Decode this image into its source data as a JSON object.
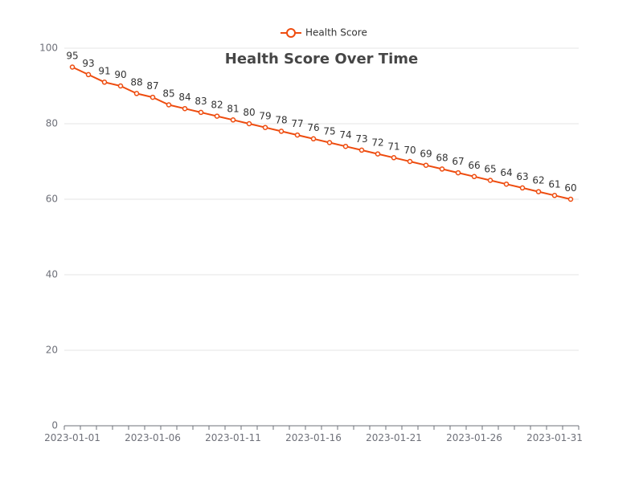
{
  "chart_data": {
    "type": "line",
    "title": "Health Score Over Time",
    "xlabel": "",
    "ylabel": "",
    "ylim": [
      0,
      100
    ],
    "yticks": [
      0,
      20,
      40,
      60,
      80,
      100
    ],
    "x": [
      "2023-01-01",
      "2023-01-02",
      "2023-01-03",
      "2023-01-04",
      "2023-01-05",
      "2023-01-06",
      "2023-01-07",
      "2023-01-08",
      "2023-01-09",
      "2023-01-10",
      "2023-01-11",
      "2023-01-12",
      "2023-01-13",
      "2023-01-14",
      "2023-01-15",
      "2023-01-16",
      "2023-01-17",
      "2023-01-18",
      "2023-01-19",
      "2023-01-20",
      "2023-01-21",
      "2023-01-22",
      "2023-01-23",
      "2023-01-24",
      "2023-01-25",
      "2023-01-26",
      "2023-01-27",
      "2023-01-28",
      "2023-01-29",
      "2023-01-30",
      "2023-01-31",
      "2023-02-01"
    ],
    "xtick_labels": [
      "2023-01-01",
      "2023-01-06",
      "2023-01-11",
      "2023-01-16",
      "2023-01-21",
      "2023-01-26",
      "2023-01-31"
    ],
    "series": [
      {
        "name": "Health Score",
        "color": "#ee4c0f",
        "values": [
          95,
          93,
          91,
          90,
          88,
          87,
          85,
          84,
          83,
          82,
          81,
          80,
          79,
          78,
          77,
          76,
          75,
          74,
          73,
          72,
          71,
          70,
          69,
          68,
          67,
          66,
          65,
          64,
          63,
          62,
          61,
          60
        ]
      }
    ],
    "legend_position": "top-center",
    "grid": true
  }
}
